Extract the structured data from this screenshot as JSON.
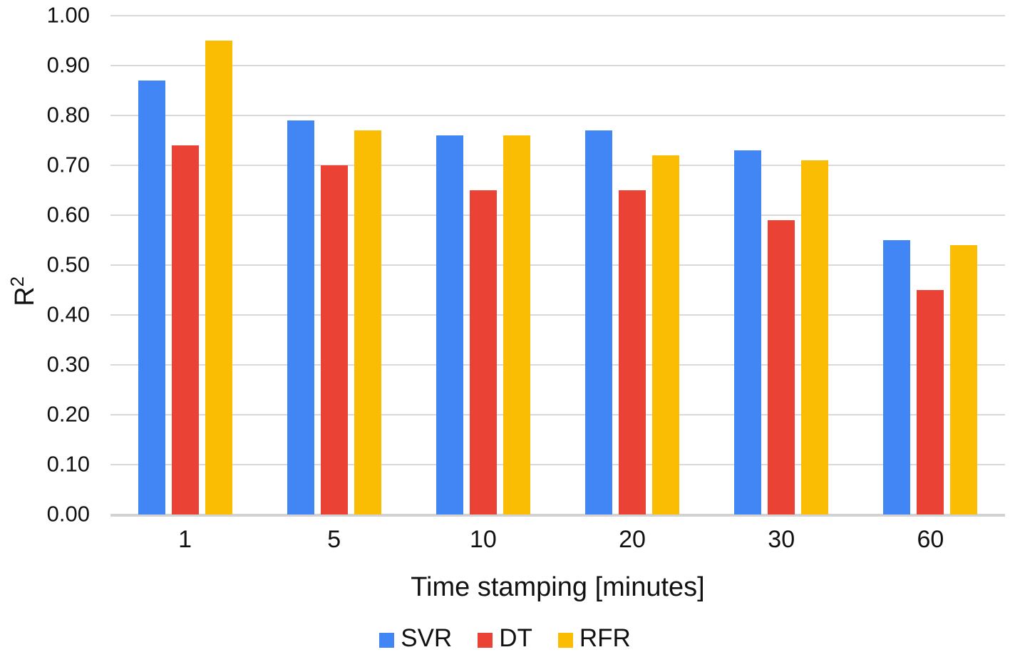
{
  "chart_data": {
    "type": "bar",
    "title": "",
    "categories": [
      "1",
      "5",
      "10",
      "20",
      "30",
      "60"
    ],
    "series": [
      {
        "name": "SVR",
        "color": "#4285F4",
        "values": [
          0.87,
          0.79,
          0.76,
          0.77,
          0.73,
          0.55
        ]
      },
      {
        "name": "DT",
        "color": "#EA4335",
        "values": [
          0.74,
          0.7,
          0.65,
          0.65,
          0.59,
          0.45
        ]
      },
      {
        "name": "RFR",
        "color": "#FBBC04",
        "values": [
          0.95,
          0.77,
          0.76,
          0.72,
          0.71,
          0.54
        ]
      }
    ],
    "xlabel": "Time stamping [minutes]",
    "ylabel": "R²",
    "ylabel_base": "R",
    "ylabel_sup": "2",
    "ylim": [
      0,
      1.0
    ],
    "ytick_step": 0.1,
    "ytick_labels": [
      "1.00",
      "0.90",
      "0.80",
      "0.70",
      "0.60",
      "0.50",
      "0.40",
      "0.30",
      "0.20",
      "0.10",
      "0.00"
    ],
    "grid": true,
    "gridline_color": "#d9d9d9",
    "baseline_color": "#d2d2d2",
    "text_color": "#111111",
    "background_color": "#ffffff",
    "legend_position": "bottom"
  }
}
